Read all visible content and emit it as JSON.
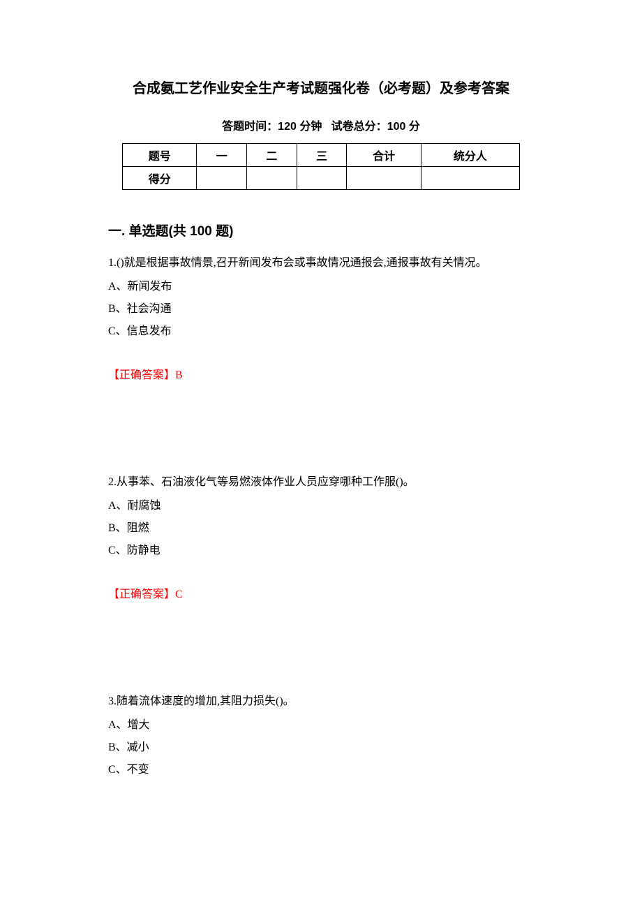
{
  "title": "合成氨工艺作业安全生产考试题强化卷（必考题）及参考答案",
  "subtitle_time_label": "答题时间：",
  "subtitle_time_value": "120 分钟",
  "subtitle_score_label": "试卷总分：",
  "subtitle_score_value": "100 分",
  "table": {
    "headers": [
      "题号",
      "一",
      "二",
      "三",
      "合计",
      "统分人"
    ],
    "row_label": "得分",
    "column_widths": [
      "95px",
      "95px",
      "95px",
      "95px",
      "95px",
      "95px"
    ],
    "border_color": "#000000",
    "font_size": 16
  },
  "section_title": "一. 单选题(共 100 题)",
  "questions": [
    {
      "number": "1.",
      "text": "()就是根据事故情景,召开新闻发布会或事故情况通报会,通报事故有关情况。",
      "options": [
        "A、新闻发布",
        "B、社会沟通",
        "C、信息发布"
      ],
      "answer_label": "【正确答案】",
      "answer_letter": "B"
    },
    {
      "number": "2.",
      "text": "从事苯、石油液化气等易燃液体作业人员应穿哪种工作服()。",
      "options": [
        "A、耐腐蚀",
        "B、阻燃",
        "C、防静电"
      ],
      "answer_label": "【正确答案】",
      "answer_letter": "C"
    },
    {
      "number": "3.",
      "text": "随着流体速度的增加,其阻力损失()。",
      "options": [
        "A、增大",
        "B、减小",
        "C、不变"
      ],
      "answer_label": "",
      "answer_letter": ""
    }
  ],
  "colors": {
    "text": "#000000",
    "answer": "#ff0000",
    "background": "#ffffff"
  },
  "typography": {
    "title_fontsize": 20,
    "subtitle_fontsize": 16,
    "section_fontsize": 19,
    "body_fontsize": 16,
    "line_height": 2.0
  }
}
